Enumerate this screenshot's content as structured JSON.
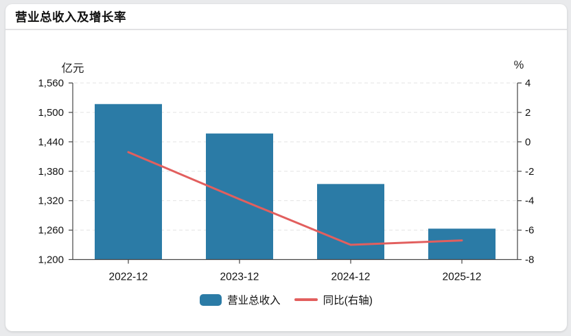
{
  "header": {
    "title": "营业总收入及增长率"
  },
  "chart_data": {
    "type": "bar",
    "title": "营业总收入及增长率",
    "categories": [
      "2022-12",
      "2023-12",
      "2024-12",
      "2025-12"
    ],
    "series": [
      {
        "name": "营业总收入",
        "type": "bar",
        "axis": "left",
        "unit": "亿元",
        "color": "#2b7ba6",
        "values": [
          1517,
          1457,
          1354,
          1263
        ]
      },
      {
        "name": "同比(右轴)",
        "type": "line",
        "axis": "right",
        "unit": "%",
        "color": "#e25f5e",
        "values": [
          -0.7,
          -3.9,
          -7.0,
          -6.7
        ]
      }
    ],
    "left_axis": {
      "unit": "亿元",
      "min": 1200,
      "max": 1560,
      "tick_labels": [
        "1,560",
        "1,500",
        "1,440",
        "1,380",
        "1,320",
        "1,260",
        "1,200"
      ]
    },
    "right_axis": {
      "unit": "%",
      "min": -8,
      "max": 4,
      "tick_labels": [
        "4",
        "2",
        "0",
        "-2",
        "-4",
        "-6",
        "-8"
      ]
    },
    "grid": true,
    "grid_color": "#e2e2e2",
    "axis_color": "#444444",
    "legend_position": "bottom"
  }
}
